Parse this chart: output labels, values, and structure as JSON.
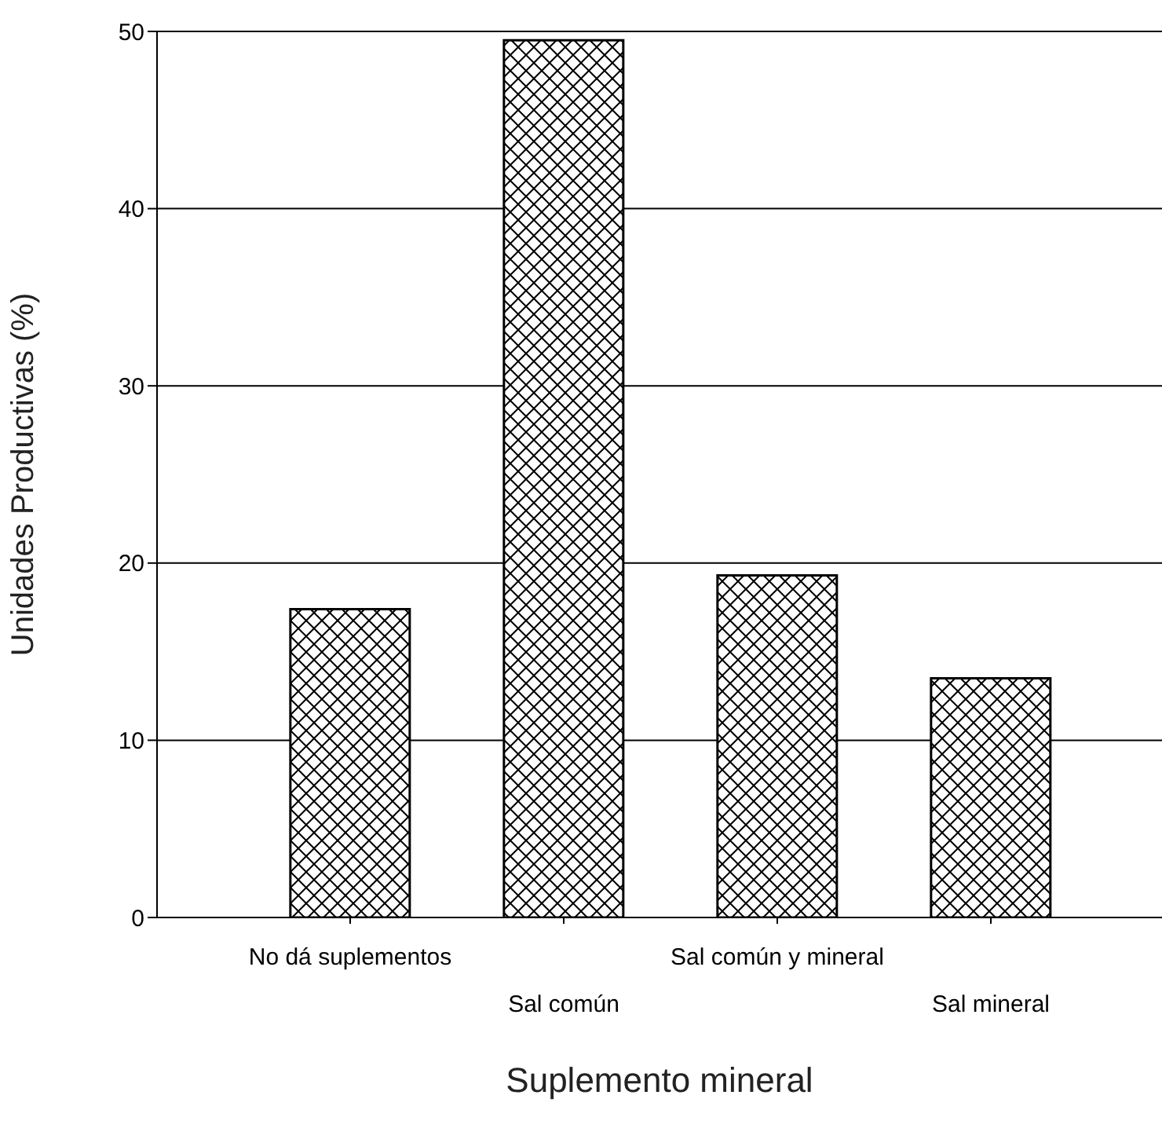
{
  "chart_data": {
    "type": "bar",
    "xlabel": "Suplemento mineral",
    "ylabel": "Unidades Productivas (%)",
    "categories": [
      "No dá suplementos",
      "Sal común",
      "Sal común y mineral",
      "Sal mineral"
    ],
    "values": [
      17.4,
      49.5,
      19.3,
      13.5
    ],
    "color": "#000000",
    "ylim": [
      0,
      50
    ],
    "yticks": [
      0,
      10,
      20,
      30,
      40,
      50
    ],
    "grid": "y"
  }
}
